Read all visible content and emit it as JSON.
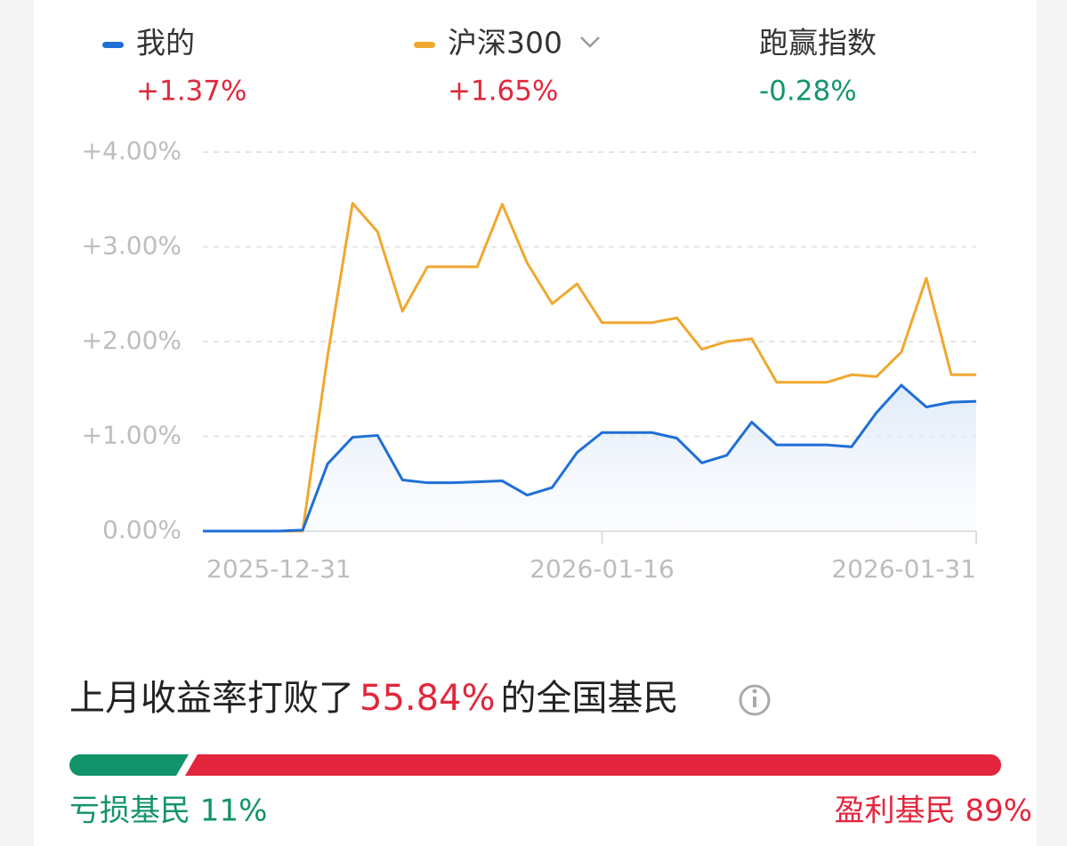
{
  "summary": [
    {
      "name": "我的",
      "value": "+1.37%"
    },
    {
      "name": "沪深300",
      "value": "+1.65%"
    },
    {
      "name": "跑赢指数",
      "value": "-0.28%"
    }
  ],
  "chart_data": {
    "type": "line",
    "categories": [
      "2025-12-31",
      null,
      null,
      null,
      null,
      null,
      null,
      null,
      null,
      null,
      null,
      null,
      null,
      null,
      null,
      null,
      "2026-01-16",
      null,
      null,
      null,
      null,
      null,
      null,
      null,
      null,
      null,
      null,
      null,
      null,
      null,
      null,
      "2026-01-31"
    ],
    "series": [
      {
        "name": "我的",
        "color": "#1f6fd6",
        "values": [
          0,
          0,
          0,
          0,
          0.01,
          0.71,
          0.99,
          1.01,
          0.54,
          0.51,
          0.51,
          0.52,
          0.53,
          0.38,
          0.46,
          0.83,
          1.04,
          1.04,
          1.04,
          0.98,
          0.72,
          0.8,
          1.15,
          0.91,
          0.91,
          0.91,
          0.89,
          1.25,
          1.54,
          1.31,
          1.36,
          1.37
        ]
      },
      {
        "name": "沪深300",
        "color": "#f0a830",
        "values": [
          0,
          0,
          0,
          0,
          0,
          1.85,
          3.46,
          3.16,
          2.32,
          2.79,
          2.79,
          2.79,
          3.45,
          2.83,
          2.4,
          2.61,
          2.2,
          2.2,
          2.2,
          2.25,
          1.92,
          2.0,
          2.03,
          1.57,
          1.57,
          1.57,
          1.65,
          1.63,
          1.89,
          2.67,
          1.65,
          1.65
        ]
      }
    ],
    "ylim": [
      0,
      4
    ],
    "yticks": [
      {
        "value": 0,
        "label": "0.00%"
      },
      {
        "value": 1,
        "label": "+1.00%"
      },
      {
        "value": 2,
        "label": "+2.00%"
      },
      {
        "value": 3,
        "label": "+3.00%"
      },
      {
        "value": 4,
        "label": "+4.00%"
      }
    ],
    "grid": true
  },
  "ranking": {
    "prefix": "上月收益率打败了",
    "percent": "55.84%",
    "suffix": "的全国基民"
  },
  "distribution": {
    "loss": "亏损基民 11%",
    "profit": "盈利基民 89%"
  }
}
